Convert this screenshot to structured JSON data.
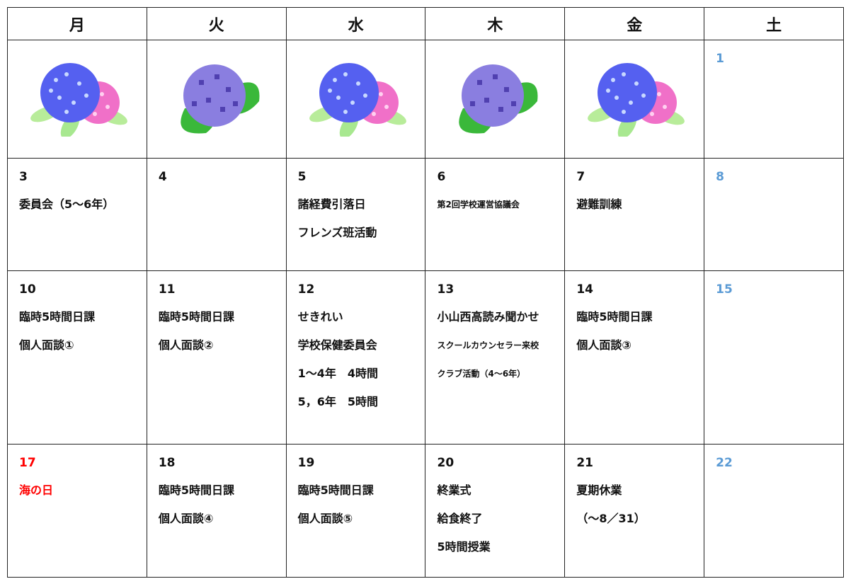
{
  "header": {
    "days": [
      "月",
      "火",
      "水",
      "木",
      "金",
      "土"
    ]
  },
  "weeks": [
    [
      {},
      {},
      {},
      {},
      {},
      {
        "day": "1",
        "color": "#5b9bd5"
      }
    ],
    [
      {
        "day": "3",
        "events": [
          "委員会（5～6年）"
        ]
      },
      {
        "day": "4"
      },
      {
        "day": "5",
        "events": [
          "諸経費引落日",
          "フレンズ班活動"
        ]
      },
      {
        "day": "6",
        "events": [
          "第2回学校運営協議会"
        ]
      },
      {
        "day": "7",
        "events": [
          "避難訓練"
        ]
      },
      {
        "day": "8",
        "color": "#5b9bd5"
      }
    ],
    [
      {
        "day": "10",
        "events": [
          "臨時5時間日課",
          "個人面談①"
        ]
      },
      {
        "day": "11",
        "events": [
          "臨時5時間日課",
          "個人面談②"
        ]
      },
      {
        "day": "12",
        "events": [
          "せきれい",
          "学校保健委員会",
          "1～4年　4時間",
          "5，6年　5時間"
        ]
      },
      {
        "day": "13",
        "events": [
          "小山西高読み聞かせ",
          "スクールカウンセラー来校",
          "クラブ活動（4～6年）"
        ]
      },
      {
        "day": "14",
        "events": [
          "臨時5時間日課",
          "個人面談③"
        ]
      },
      {
        "day": "15",
        "color": "#5b9bd5"
      }
    ],
    [
      {
        "day": "17",
        "events": [
          "海の日"
        ],
        "color": "#ff0000"
      },
      {
        "day": "18",
        "events": [
          "臨時5時間日課",
          "個人面談④"
        ]
      },
      {
        "day": "19",
        "events": [
          "臨時5時間日課",
          "個人面談⑤"
        ]
      },
      {
        "day": "20",
        "events": [
          "終業式",
          "給食終了",
          "5時間授業"
        ]
      },
      {
        "day": "21",
        "events": [
          "夏期休業",
          "（～8／31）"
        ]
      },
      {
        "day": "22",
        "color": "#5b9bd5"
      }
    ]
  ]
}
